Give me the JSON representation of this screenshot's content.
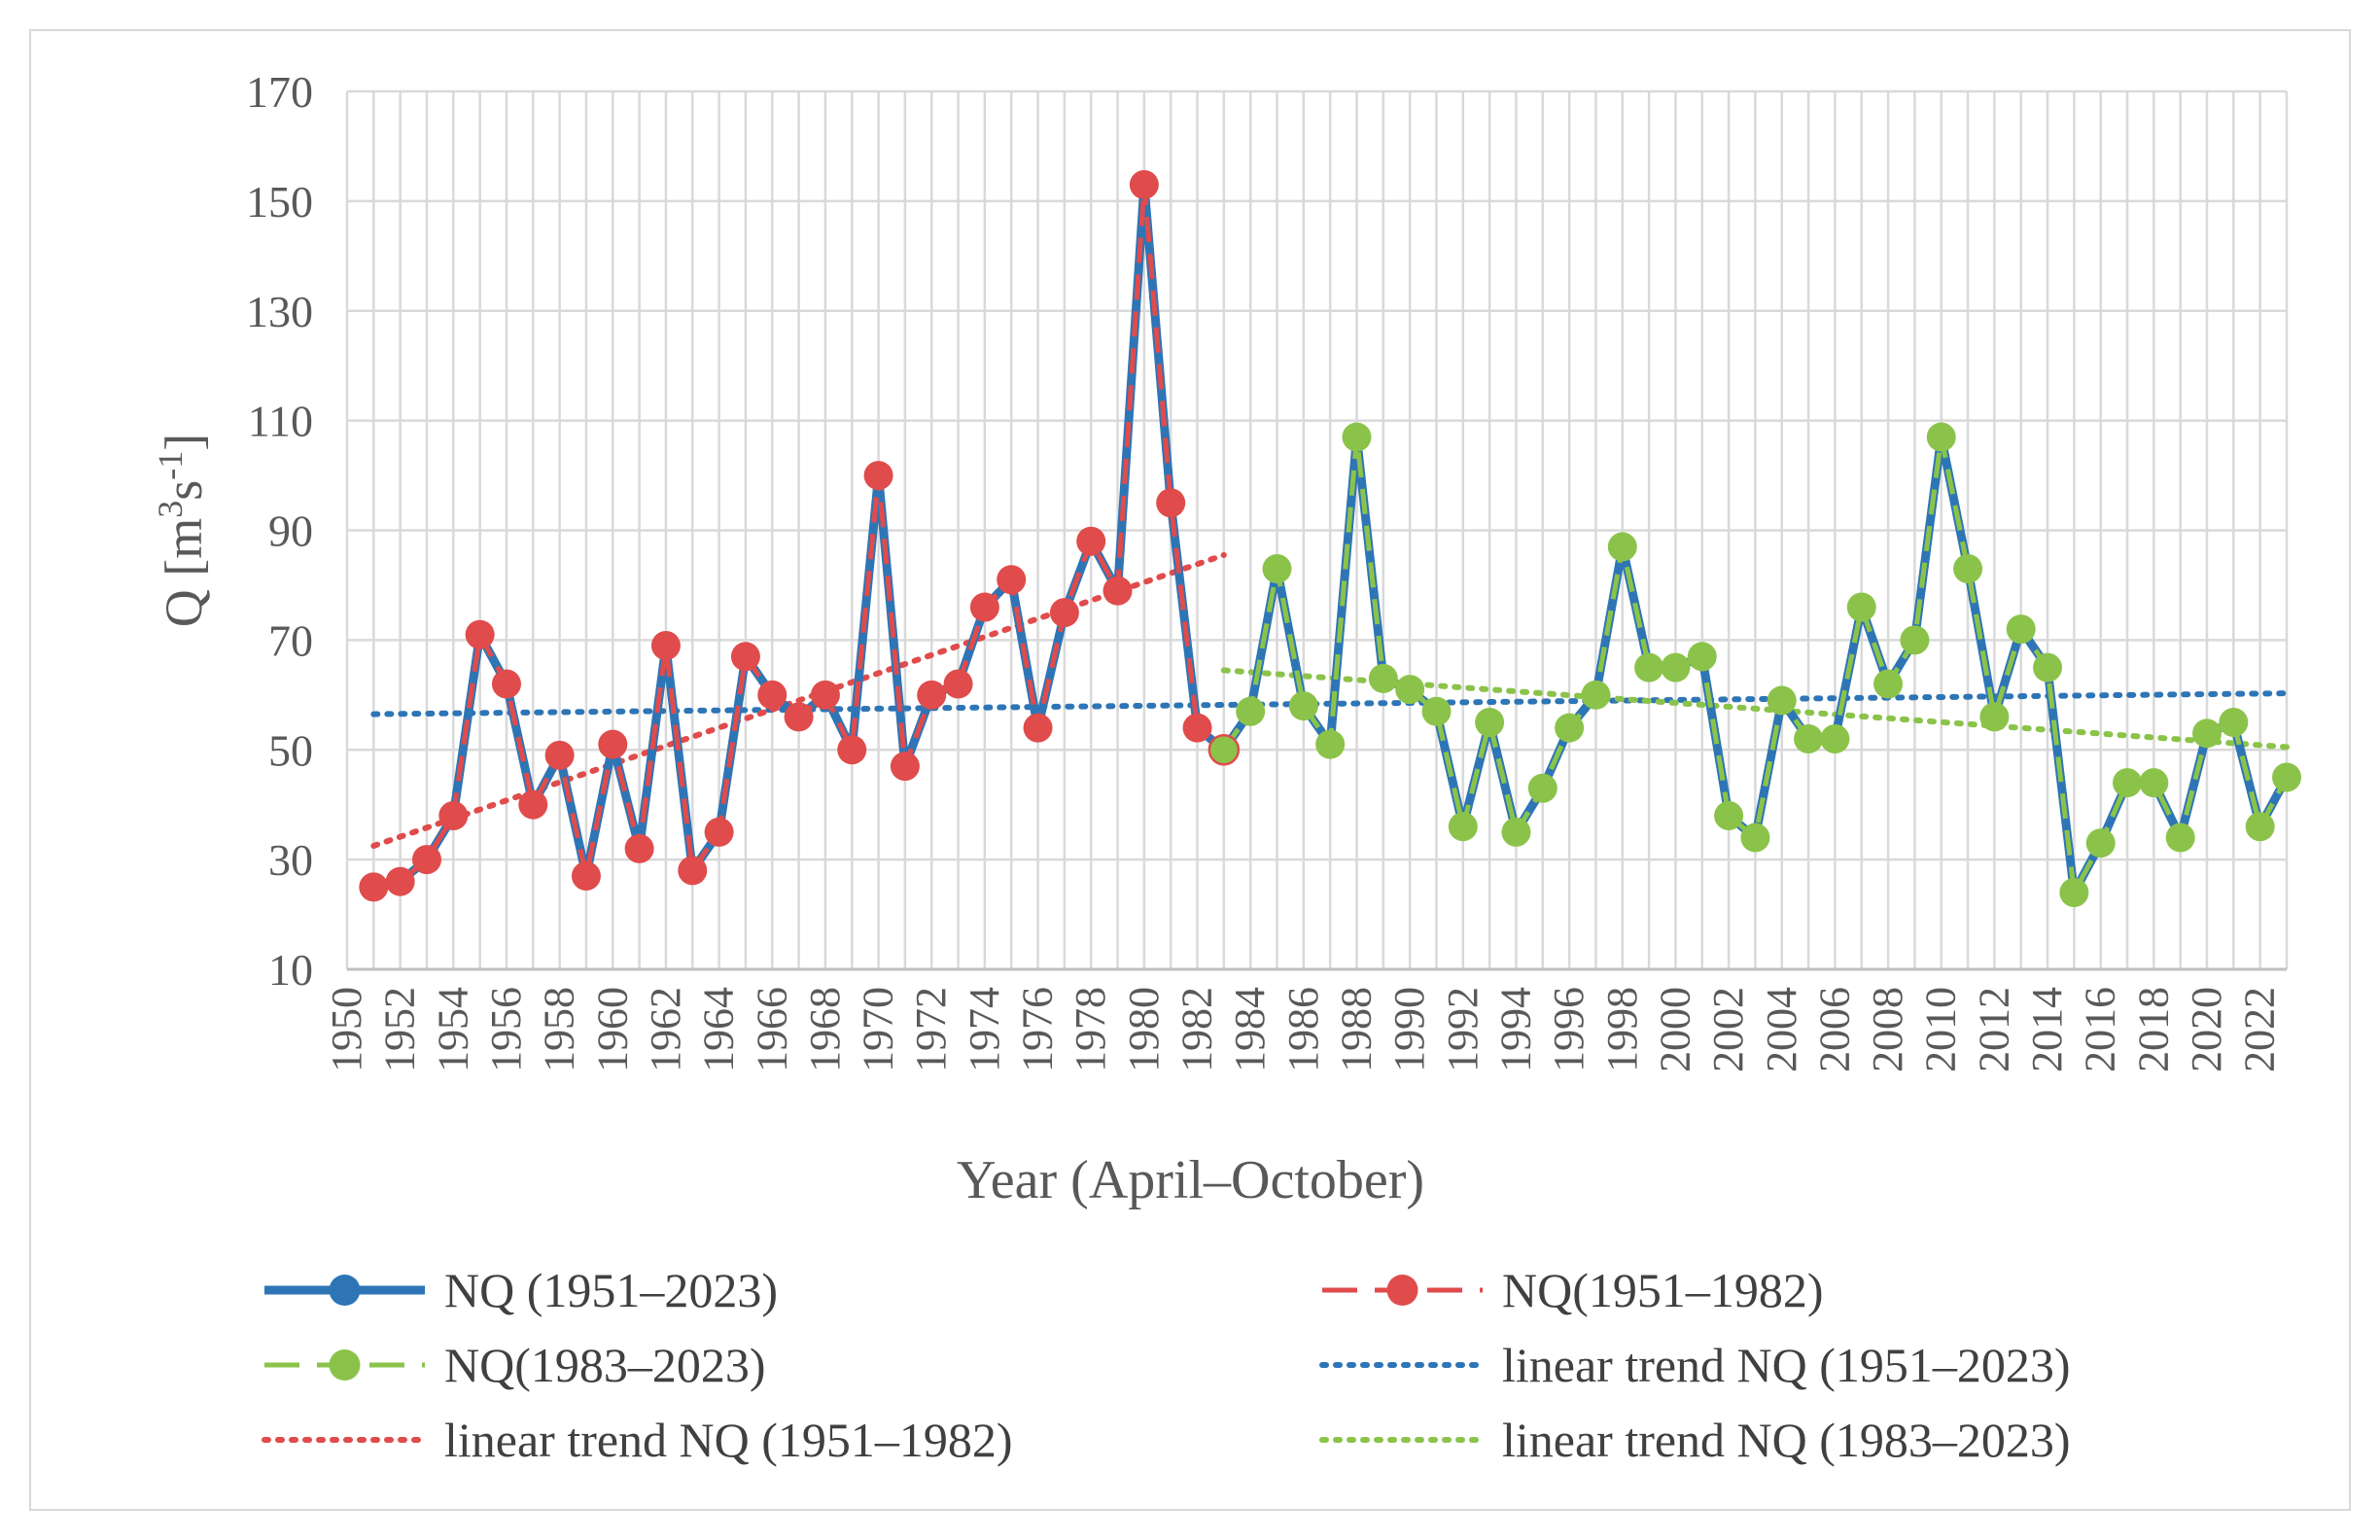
{
  "chart_data": {
    "type": "line",
    "title": "",
    "xlabel": "Year (April–October)",
    "ylabel": "Q [m³s⁻¹]",
    "ylabel_parts": {
      "base": "Q [m",
      "sup1": "3",
      "mid": "s",
      "sup2": "-1",
      "end": "]"
    },
    "ylim": [
      10,
      170
    ],
    "yticks": [
      10,
      30,
      50,
      70,
      90,
      110,
      130,
      150,
      170
    ],
    "xlim": [
      1950,
      2023
    ],
    "xticks": [
      1950,
      1952,
      1954,
      1956,
      1958,
      1960,
      1962,
      1964,
      1966,
      1968,
      1970,
      1972,
      1974,
      1976,
      1978,
      1980,
      1982,
      1984,
      1986,
      1988,
      1990,
      1992,
      1994,
      1996,
      1998,
      2000,
      2002,
      2004,
      2006,
      2008,
      2010,
      2012,
      2014,
      2016,
      2018,
      2020,
      2022
    ],
    "grid": true,
    "legend_position": "bottom",
    "x": [
      1951,
      1952,
      1953,
      1954,
      1955,
      1956,
      1957,
      1958,
      1959,
      1960,
      1961,
      1962,
      1963,
      1964,
      1965,
      1966,
      1967,
      1968,
      1969,
      1970,
      1971,
      1972,
      1973,
      1974,
      1975,
      1976,
      1977,
      1978,
      1979,
      1980,
      1981,
      1982,
      1983,
      1984,
      1985,
      1986,
      1987,
      1988,
      1989,
      1990,
      1991,
      1992,
      1993,
      1994,
      1995,
      1996,
      1997,
      1998,
      1999,
      2000,
      2001,
      2002,
      2003,
      2004,
      2005,
      2006,
      2007,
      2008,
      2009,
      2010,
      2011,
      2012,
      2013,
      2014,
      2015,
      2016,
      2017,
      2018,
      2019,
      2020,
      2021,
      2022,
      2023
    ],
    "values": [
      25,
      26,
      30,
      38,
      71,
      62,
      40,
      49,
      27,
      51,
      32,
      69,
      28,
      35,
      67,
      60,
      56,
      60,
      50,
      100,
      47,
      60,
      62,
      76,
      81,
      54,
      75,
      88,
      79,
      153,
      95,
      54,
      50,
      57,
      83,
      58,
      51,
      107,
      63,
      61,
      57,
      36,
      55,
      35,
      43,
      54,
      60,
      87,
      65,
      65,
      67,
      38,
      34,
      59,
      52,
      52,
      76,
      62,
      70,
      107,
      83,
      56,
      72,
      65,
      24,
      33,
      44,
      44,
      34,
      53,
      55,
      36,
      45
    ],
    "series": [
      {
        "name": "NQ (1951–2023)",
        "color": "#2e75b6",
        "style": "solid-marker",
        "from": 1951,
        "to": 2023
      },
      {
        "name": "NQ(1951–1982)",
        "color": "#e04b4b",
        "style": "dashed-marker",
        "from": 1951,
        "to": 1982
      },
      {
        "name": "NQ(1983–2023)",
        "color": "#8bc34a",
        "style": "dashed-marker",
        "from": 1983,
        "to": 2023
      },
      {
        "name": "linear trend NQ (1951–2023)",
        "color": "#2e75b6",
        "style": "dotted-trend",
        "from": 1951,
        "to": 2023,
        "start_value": 56.5,
        "end_value": 60.3
      },
      {
        "name": "linear trend NQ (1951–1982)",
        "color": "#e04b4b",
        "style": "dotted-trend",
        "from": 1951,
        "to": 1983,
        "start_value": 32.5,
        "end_value": 85.5
      },
      {
        "name": "linear trend NQ (1983–2023)",
        "color": "#8bc34a",
        "style": "dotted-trend",
        "from": 1983,
        "to": 2023,
        "start_value": 64.5,
        "end_value": 50.5
      }
    ]
  }
}
